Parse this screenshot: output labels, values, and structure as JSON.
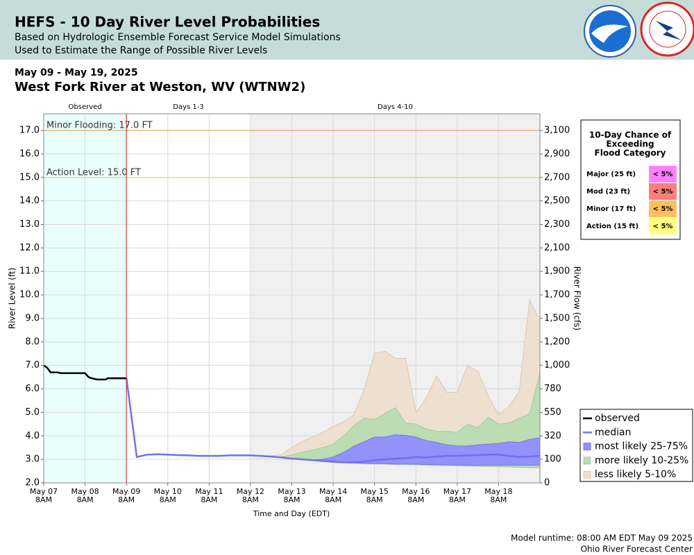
{
  "header": {
    "title": "HEFS - 10 Day River Level Probabilities",
    "subtitle_lines": [
      "Based on Hydrologic Ensemble Forecast Service Model Simulations",
      "Used to Estimate the Range of Possible River Levels"
    ]
  },
  "date_range": "May 09 - May 19, 2025",
  "station": "West Fork River at Weston, WV (WTNW2)",
  "chart_data": {
    "type": "ensemble-band",
    "ylabel": "River Level (ft)",
    "y2label": "River Flow (cfs)",
    "xlabel": "Time and Day (EDT)",
    "ylim": [
      2,
      17.71
    ],
    "yticks": [
      {
        "value": 2,
        "label": "2.0"
      },
      {
        "value": 3,
        "label": "3.0"
      },
      {
        "value": 4,
        "label": "4.0"
      },
      {
        "value": 5,
        "label": "5.0"
      },
      {
        "value": 6,
        "label": "6.0"
      },
      {
        "value": 7,
        "label": "7.0"
      },
      {
        "value": 8,
        "label": "8.0"
      },
      {
        "value": 9,
        "label": "9.0"
      },
      {
        "value": 10,
        "label": "10.0"
      },
      {
        "value": 11,
        "label": "11.0"
      },
      {
        "value": 12,
        "label": "12.0"
      },
      {
        "value": 13,
        "label": "13.0"
      },
      {
        "value": 14,
        "label": "14.0"
      },
      {
        "value": 15,
        "label": "15.0"
      },
      {
        "value": 16,
        "label": "16.0"
      },
      {
        "value": 17,
        "label": "17.0"
      }
    ],
    "y2ticks": [
      {
        "value": 3100,
        "label": "3,100",
        "stage": 17
      },
      {
        "value": 2900,
        "label": "2,900",
        "stage": 16
      },
      {
        "value": 2700,
        "label": "2,700",
        "stage": 15
      },
      {
        "value": 2500,
        "label": "2,500",
        "stage": 14
      },
      {
        "value": 2300,
        "label": "2,300",
        "stage": 13
      },
      {
        "value": 2100,
        "label": "2,100",
        "stage": 12
      },
      {
        "value": 1900,
        "label": "1,900",
        "stage": 11
      },
      {
        "value": 1700,
        "label": "1,700",
        "stage": 10
      },
      {
        "value": 1500,
        "label": "1,500",
        "stage": 9
      },
      {
        "value": 1200,
        "label": "1,200",
        "stage": 8
      },
      {
        "value": 1000,
        "label": "1,000",
        "stage": 7
      },
      {
        "value": 780,
        "label": "780",
        "stage": 6
      },
      {
        "value": 550,
        "label": "550",
        "stage": 5
      },
      {
        "value": 320,
        "label": "320",
        "stage": 4
      },
      {
        "value": 100,
        "label": "100",
        "stage": 3
      },
      {
        "value": 0,
        "label": "0",
        "stage": 2
      }
    ],
    "xlim": [
      0,
      288
    ],
    "xticks": [
      {
        "value": 0,
        "label": [
          "May 07",
          "8AM"
        ]
      },
      {
        "value": 24,
        "label": [
          "May 08",
          "8AM"
        ]
      },
      {
        "value": 48,
        "label": [
          "May 09",
          "8AM"
        ]
      },
      {
        "value": 72,
        "label": [
          "May 10",
          "8AM"
        ]
      },
      {
        "value": 96,
        "label": [
          "May 11",
          "8AM"
        ]
      },
      {
        "value": 120,
        "label": [
          "May 12",
          "8AM"
        ]
      },
      {
        "value": 144,
        "label": [
          "May 13",
          "8AM"
        ]
      },
      {
        "value": 168,
        "label": [
          "May 14",
          "8AM"
        ]
      },
      {
        "value": 192,
        "label": [
          "May 15",
          "8AM"
        ]
      },
      {
        "value": 216,
        "label": [
          "May 16",
          "8AM"
        ]
      },
      {
        "value": 240,
        "label": [
          "May 17",
          "8AM"
        ]
      },
      {
        "value": 264,
        "label": [
          "May 18",
          "8AM"
        ]
      }
    ],
    "grid": true,
    "regions": [
      {
        "label": "Observed",
        "start": 0,
        "end": 48,
        "color": "#eafefe"
      },
      {
        "label": "Days 1-3",
        "start": 48,
        "end": 120,
        "color": "#ffffff"
      },
      {
        "label": "Days 4-10",
        "start": 120,
        "end": 288,
        "color": "#f0f0f0"
      }
    ],
    "thresholds": [
      {
        "label": "Minor Flooding: 17.0 FT",
        "value": 17,
        "color": "#e8a050"
      },
      {
        "label": "Action Level: 15.0 FT",
        "value": 15,
        "color": "#e8d850"
      }
    ],
    "now_line": {
      "x": 48,
      "color": "#cc2222"
    },
    "x": [
      48,
      54,
      60,
      66,
      72,
      78,
      84,
      90,
      96,
      102,
      108,
      114,
      120,
      126,
      132,
      138,
      144,
      150,
      156,
      162,
      168,
      174,
      180,
      186,
      192,
      198,
      204,
      210,
      216,
      222,
      228,
      234,
      240,
      246,
      252,
      258,
      264,
      270,
      276,
      282,
      288
    ],
    "series": [
      {
        "name": "less likely 5-10%",
        "kind": "band",
        "color": "#eee0d0",
        "edge": "#dcc6b0",
        "lower": [
          6.45,
          3.1,
          3.2,
          3.22,
          3.2,
          3.18,
          3.17,
          3.15,
          3.15,
          3.15,
          3.17,
          3.17,
          3.17,
          3.15,
          3.12,
          3.08,
          3.03,
          3.0,
          2.97,
          2.93,
          2.86,
          2.84,
          2.83,
          2.81,
          2.8,
          2.79,
          2.78,
          2.77,
          2.76,
          2.75,
          2.74,
          2.73,
          2.72,
          2.71,
          2.7,
          2.69,
          2.68,
          2.67,
          2.66,
          2.65,
          2.64
        ],
        "upper": [
          6.45,
          3.1,
          3.2,
          3.22,
          3.2,
          3.18,
          3.17,
          3.15,
          3.15,
          3.15,
          3.17,
          3.17,
          3.17,
          3.15,
          3.15,
          3.2,
          3.5,
          3.75,
          3.95,
          4.15,
          4.4,
          4.6,
          4.9,
          6.0,
          7.5,
          7.6,
          7.3,
          7.3,
          5.0,
          5.6,
          6.55,
          5.85,
          5.85,
          7.0,
          6.75,
          5.7,
          4.9,
          5.25,
          5.9,
          9.8,
          8.9
        ]
      },
      {
        "name": "more likely 10-25%",
        "kind": "band",
        "color": "#bcdcb4",
        "edge": "#a8cca0",
        "lower": [
          6.45,
          3.1,
          3.2,
          3.22,
          3.2,
          3.18,
          3.17,
          3.15,
          3.15,
          3.15,
          3.17,
          3.17,
          3.17,
          3.15,
          3.12,
          3.08,
          3.03,
          3.0,
          2.97,
          2.93,
          2.87,
          2.85,
          2.84,
          2.82,
          2.81,
          2.8,
          2.79,
          2.78,
          2.77,
          2.76,
          2.75,
          2.74,
          2.73,
          2.72,
          2.72,
          2.71,
          2.7,
          2.68,
          2.67,
          2.66,
          2.65
        ],
        "upper": [
          6.45,
          3.1,
          3.2,
          3.22,
          3.2,
          3.18,
          3.17,
          3.15,
          3.15,
          3.15,
          3.17,
          3.17,
          3.17,
          3.15,
          3.12,
          3.1,
          3.2,
          3.3,
          3.4,
          3.5,
          3.65,
          4.0,
          4.45,
          4.75,
          4.7,
          4.95,
          5.2,
          4.55,
          4.5,
          4.3,
          4.2,
          4.2,
          4.15,
          4.5,
          4.35,
          4.8,
          4.5,
          4.55,
          4.75,
          4.95,
          6.7
        ]
      },
      {
        "name": "most likely 25-75%",
        "kind": "band",
        "color": "#9292fa",
        "edge": "#7676ee",
        "lower": [
          6.45,
          3.1,
          3.2,
          3.22,
          3.2,
          3.18,
          3.17,
          3.15,
          3.15,
          3.15,
          3.17,
          3.17,
          3.17,
          3.15,
          3.12,
          3.08,
          3.03,
          3.0,
          2.97,
          2.93,
          2.88,
          2.86,
          2.85,
          2.83,
          2.82,
          2.82,
          2.8,
          2.8,
          2.8,
          2.78,
          2.77,
          2.77,
          2.76,
          2.75,
          2.75,
          2.75,
          2.75,
          2.75,
          2.75,
          2.75,
          2.75
        ],
        "upper": [
          6.45,
          3.1,
          3.2,
          3.22,
          3.2,
          3.18,
          3.17,
          3.15,
          3.15,
          3.15,
          3.17,
          3.17,
          3.17,
          3.15,
          3.12,
          3.08,
          3.03,
          3.0,
          2.98,
          3.0,
          3.1,
          3.3,
          3.55,
          3.75,
          3.95,
          3.95,
          4.05,
          4.02,
          3.95,
          3.8,
          3.72,
          3.62,
          3.57,
          3.57,
          3.62,
          3.65,
          3.68,
          3.75,
          3.72,
          3.85,
          3.92
        ]
      },
      {
        "name": "median",
        "kind": "line",
        "color": "#7070ee",
        "width": 2.5,
        "values": [
          6.45,
          3.1,
          3.2,
          3.22,
          3.2,
          3.18,
          3.17,
          3.15,
          3.15,
          3.15,
          3.17,
          3.17,
          3.17,
          3.15,
          3.12,
          3.08,
          3.03,
          3.0,
          2.97,
          2.93,
          2.9,
          2.88,
          2.87,
          2.9,
          2.97,
          3.0,
          3.03,
          3.05,
          3.1,
          3.08,
          3.12,
          3.15,
          3.15,
          3.17,
          3.18,
          3.2,
          3.2,
          3.15,
          3.1,
          3.12,
          3.15
        ]
      },
      {
        "name": "observed",
        "kind": "line",
        "color": "#000000",
        "width": 2.5,
        "x": [
          0,
          2,
          4,
          8,
          10,
          24,
          26,
          28,
          31,
          36,
          37,
          48
        ],
        "values": [
          7.0,
          6.9,
          6.7,
          6.7,
          6.67,
          6.67,
          6.5,
          6.45,
          6.4,
          6.4,
          6.45,
          6.45
        ]
      }
    ],
    "legend_order": [
      4,
      3,
      2,
      1,
      0
    ],
    "legend": "lower-right"
  },
  "flood_table": {
    "title_lines": [
      "10-Day Chance of",
      "Exceeding",
      "Flood Category"
    ],
    "rows": [
      {
        "category": "Major (25 ft)",
        "chance": "< 5%",
        "color": "#ff80ff"
      },
      {
        "category": "Mod (23 ft)",
        "chance": "< 5%",
        "color": "#ff7f7f"
      },
      {
        "category": "Minor (17 ft)",
        "chance": "< 5%",
        "color": "#ffbf60"
      },
      {
        "category": "Action (15 ft)",
        "chance": "< 5%",
        "color": "#ffff80"
      }
    ]
  },
  "footer": [
    "Model runtime: 08:00 AM EDT May 09 2025",
    "Ohio River Forecast Center"
  ]
}
